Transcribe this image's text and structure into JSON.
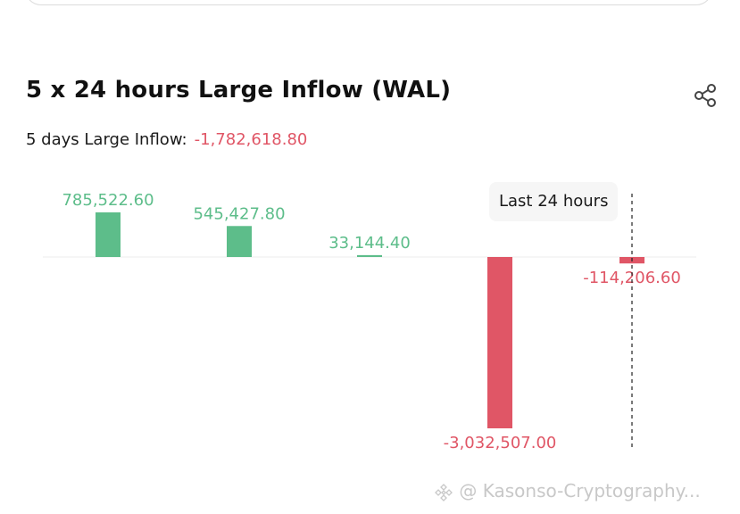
{
  "header": {
    "title": "5 x 24 hours Large Inflow (WAL)",
    "summary_label": "5 days Large Inflow:",
    "summary_value": "-1,782,618.80",
    "share_icon": "share-icon"
  },
  "tooltip": {
    "label": "Last 24 hours"
  },
  "colors": {
    "positive": "#5dbd8a",
    "negative": "#e05666",
    "text": "#111111"
  },
  "chart_data": {
    "type": "bar",
    "categories": [
      "",
      "",
      "",
      "",
      ""
    ],
    "values": [
      785522.6,
      545427.8,
      33144.4,
      -3032507.0,
      -114206.6
    ],
    "value_labels": [
      "785,522.60",
      "545,427.80",
      "33,144.40",
      "-3,032,507.00",
      "-114,206.60"
    ],
    "title": "5 x 24 hours Large Inflow (WAL)",
    "xlabel": "",
    "ylabel": "",
    "ylim": [
      -3032507.0,
      785522.6
    ],
    "grid": false,
    "highlight_last": true
  },
  "watermark": {
    "text": "@ Kasonso-Cryptography..."
  }
}
